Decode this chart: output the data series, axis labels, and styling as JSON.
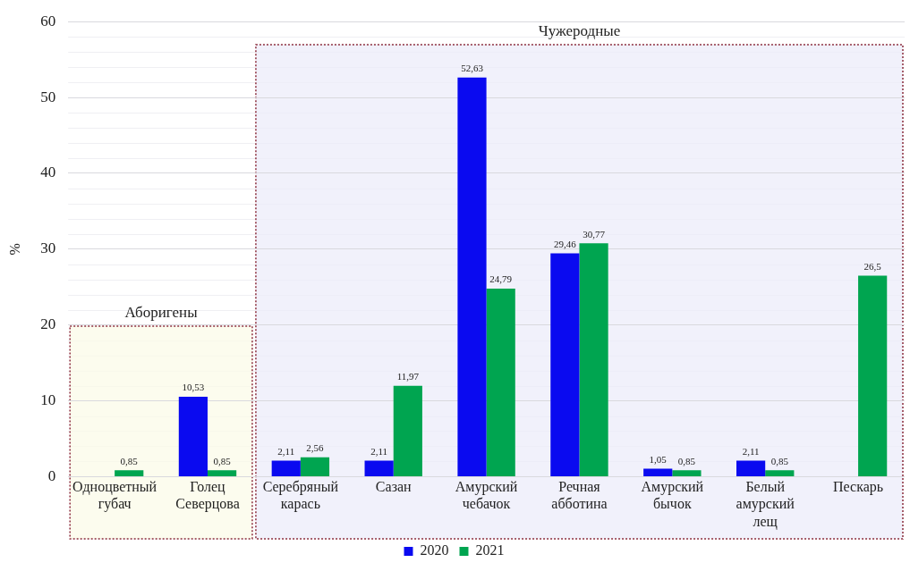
{
  "chart_data": {
    "type": "bar",
    "ylabel": "%",
    "categories": [
      "Одноцветный губач",
      "Голец Северцова",
      "Серебряный карась",
      "Сазан",
      "Амурский чебачок",
      "Речная абботина",
      "Амурский бычок",
      "Белый амурский лещ",
      "Пескарь"
    ],
    "series": [
      {
        "name": "2020",
        "color": "#0a0af0",
        "values": [
          null,
          10.53,
          2.11,
          2.11,
          52.63,
          29.46,
          1.05,
          2.11,
          null
        ],
        "value_labels": [
          null,
          "10,53",
          "2,11",
          "2,11",
          "52,63",
          "29,46",
          "1,05",
          "2,11",
          null
        ]
      },
      {
        "name": "2021",
        "color": "#00a550",
        "values": [
          0.85,
          0.85,
          2.56,
          11.97,
          24.79,
          30.77,
          0.85,
          0.85,
          26.5
        ],
        "value_labels": [
          "0,85",
          "0,85",
          "2,56",
          "11,97",
          "24,79",
          "30,77",
          "0,85",
          "0,85",
          "26,5"
        ]
      }
    ],
    "ylim": [
      0,
      60
    ],
    "yticks": [
      0,
      10,
      20,
      30,
      40,
      50,
      60
    ],
    "grid": "y",
    "legend": "bottom",
    "bands": [
      {
        "axis": "x",
        "from": "Одноцветный губач",
        "to": "Голец Северцова",
        "label": "Аборигены",
        "color": "#fbfbe8"
      },
      {
        "axis": "x",
        "from": "Серебряный карась",
        "to": "Пескарь",
        "label": "Чужеродные",
        "color": "#ececfa"
      }
    ]
  }
}
